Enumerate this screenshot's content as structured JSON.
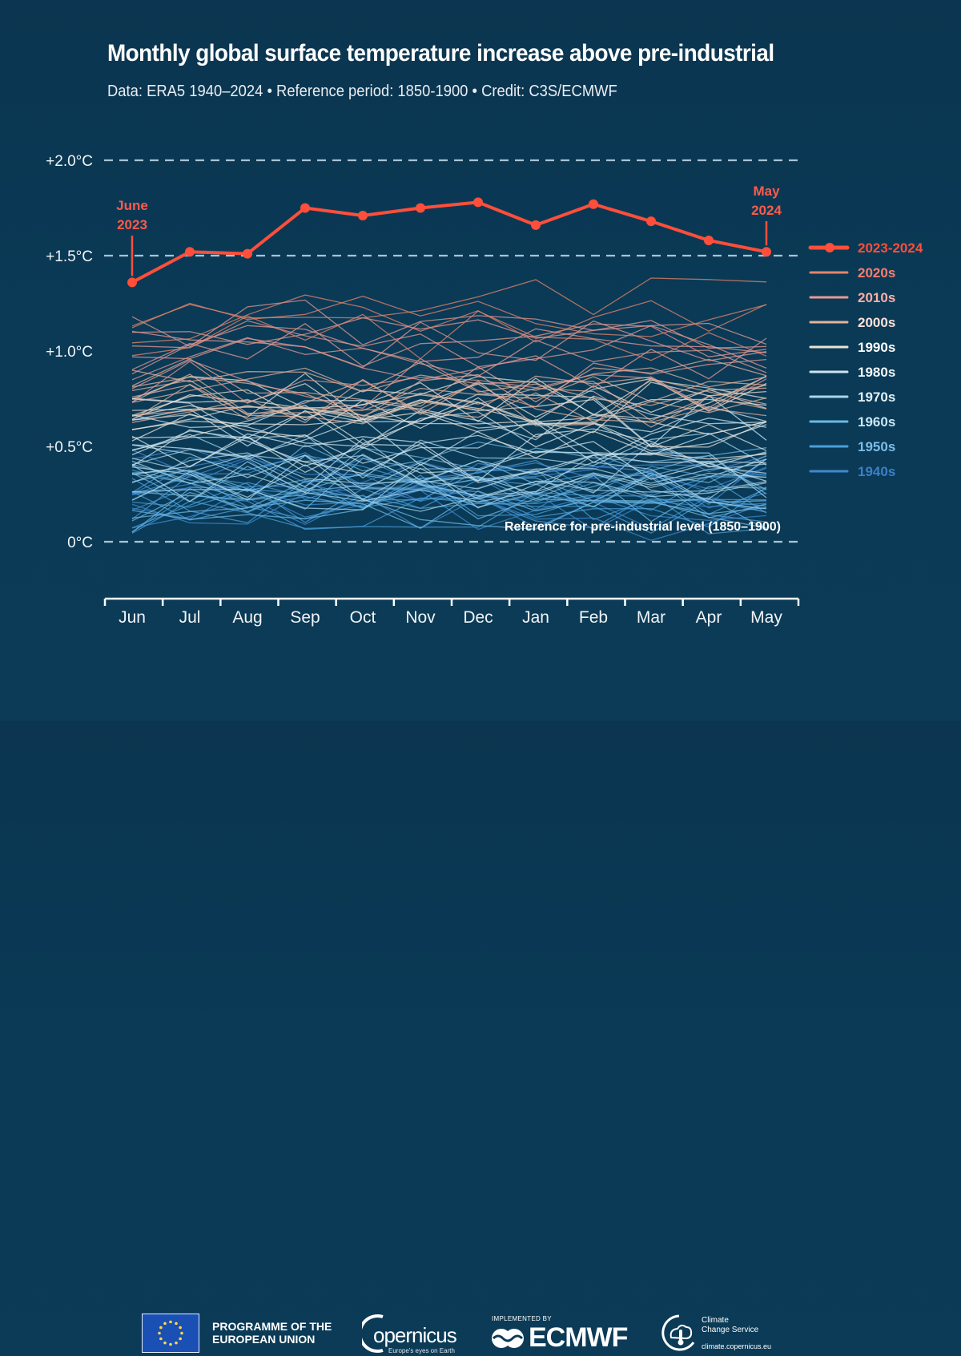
{
  "header": {
    "title": "Monthly global surface temperature increase above pre-industrial",
    "subtitle": "Data: ERA5 1940–2024 • Reference period: 1850-1900 • Credit: C3S/ECMWF"
  },
  "chart_data": {
    "type": "line",
    "title": "Monthly global surface temperature increase above pre-industrial",
    "subtitle": "Data: ERA5 1940–2024 • Reference period: 1850-1900 • Credit: C3S/ECMWF",
    "xlabel": "",
    "ylabel": "",
    "categories": [
      "Jun",
      "Jul",
      "Aug",
      "Sep",
      "Oct",
      "Nov",
      "Dec",
      "Jan",
      "Feb",
      "Mar",
      "Apr",
      "May"
    ],
    "ylim": [
      -0.25,
      2.0
    ],
    "yticks": [
      {
        "value": 2.0,
        "label": "+2.0°C"
      },
      {
        "value": 1.5,
        "label": "+1.5°C"
      },
      {
        "value": 1.0,
        "label": "+1.0°C"
      },
      {
        "value": 0.5,
        "label": "+0.5°C"
      },
      {
        "value": 0.0,
        "label": "0°C"
      }
    ],
    "gridlines": {
      "values": [
        0.0,
        1.5,
        2.0
      ],
      "style": "dashed",
      "color": "#b9d3e2"
    },
    "highlight_series": {
      "name": "2023-2024",
      "color": "#ff4e3a",
      "values": [
        1.36,
        1.52,
        1.51,
        1.75,
        1.71,
        1.75,
        1.78,
        1.66,
        1.77,
        1.68,
        1.58,
        1.52
      ]
    },
    "decade_groups": [
      {
        "name": "2020s",
        "color": "#e8846b",
        "center": 1.2,
        "spread": 0.14,
        "count": 4
      },
      {
        "name": "2010s",
        "color": "#e79a93",
        "center": 0.98,
        "spread": 0.18,
        "count": 10
      },
      {
        "name": "2000s",
        "color": "#e6b19c",
        "center": 0.82,
        "spread": 0.12,
        "count": 10
      },
      {
        "name": "1990s",
        "color": "#e9e1d6",
        "center": 0.66,
        "spread": 0.14,
        "count": 10
      },
      {
        "name": "1980s",
        "color": "#cfe4ee",
        "center": 0.52,
        "spread": 0.12,
        "count": 10
      },
      {
        "name": "1970s",
        "color": "#a8d6ea",
        "center": 0.34,
        "spread": 0.12,
        "count": 10
      },
      {
        "name": "1960s",
        "color": "#6fb8e2",
        "center": 0.28,
        "spread": 0.11,
        "count": 10
      },
      {
        "name": "1950s",
        "color": "#4a9fd8",
        "center": 0.22,
        "spread": 0.12,
        "count": 10
      },
      {
        "name": "1940s",
        "color": "#3f88cf",
        "center": 0.26,
        "spread": 0.14,
        "count": 10
      }
    ],
    "annotations": [
      {
        "text_lines": [
          "June",
          "2023"
        ],
        "month": "Jun",
        "value": 1.36,
        "color": "#ff4e3a"
      },
      {
        "text_lines": [
          "May",
          "2024"
        ],
        "month": "May",
        "value": 1.52,
        "color": "#ff4e3a"
      },
      {
        "text": "Reference for pre-industrial level (1850–1900)",
        "value": 0.0,
        "position": "above-right"
      }
    ],
    "legend": {
      "position": "right",
      "entries": [
        {
          "label": "2023-2024",
          "color": "#ff4e3a",
          "text_color": "#ff4e3a",
          "marker": true
        },
        {
          "label": "2020s",
          "color": "#e8846b",
          "text_color": "#ff7e6e"
        },
        {
          "label": "2010s",
          "color": "#e79a93",
          "text_color": "#ffb0a4"
        },
        {
          "label": "2000s",
          "color": "#e6b19c",
          "text_color": "#ffe2d6"
        },
        {
          "label": "1990s",
          "color": "#e9e1d6",
          "text_color": "#ffffff"
        },
        {
          "label": "1980s",
          "color": "#cfe4ee",
          "text_color": "#f2f8fb"
        },
        {
          "label": "1970s",
          "color": "#a8d6ea",
          "text_color": "#e4f2f8"
        },
        {
          "label": "1960s",
          "color": "#6fb8e2",
          "text_color": "#c9e7f5"
        },
        {
          "label": "1950s",
          "color": "#4a9fd8",
          "text_color": "#7dbde8"
        },
        {
          "label": "1940s",
          "color": "#3f88cf",
          "text_color": "#3d7fc8"
        }
      ]
    }
  },
  "footer": {
    "eu_line1": "PROGRAMME OF THE",
    "eu_line2": "EUROPEAN UNION",
    "copernicus_word": "opernicus",
    "copernicus_tagline": "Europe's eyes on Earth",
    "ecmwf_small": "IMPLEMENTED BY",
    "ecmwf_word": "ECMWF",
    "c3s_line1": "Climate",
    "c3s_line2": "Change Service",
    "c3s_url": "climate.copernicus.eu"
  }
}
